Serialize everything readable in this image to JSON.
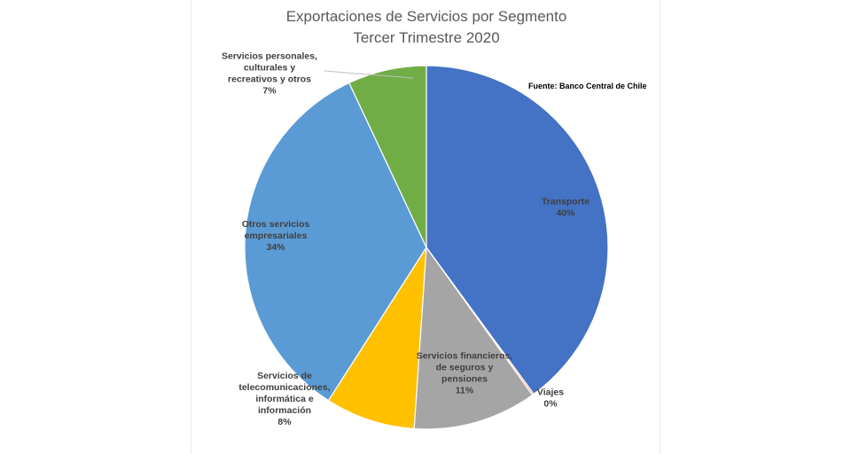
{
  "chart_data": {
    "type": "pie",
    "title": [
      "Exportaciones de Servicios por Segmento",
      "Tercer Trimestre 2020"
    ],
    "source": "Fuente: Banco Central de Chile",
    "slices": [
      {
        "name": "Transporte",
        "value": 40,
        "label_lines": [
          "Transporte"
        ],
        "pct_label": "40%",
        "color": "#4472c4",
        "label_pos": "inside"
      },
      {
        "name": "Viajes",
        "value": 0.15,
        "label_lines": [
          "Viajes"
        ],
        "pct_label": "0%",
        "color": "#ed7d31",
        "label_pos": "outside"
      },
      {
        "name": "Servicios financieros, de seguros y pensiones",
        "value": 11,
        "label_lines": [
          "Servicios financieros,",
          "de seguros y",
          "pensiones"
        ],
        "pct_label": "11%",
        "color": "#a5a5a5",
        "label_pos": "inside"
      },
      {
        "name": "Servicios de telecomunicaciones, informática e información",
        "value": 8,
        "label_lines": [
          "Servicios de",
          "telecomunicaciones,",
          "informática e",
          "información"
        ],
        "pct_label": "8%",
        "color": "#ffc000",
        "label_pos": "outside"
      },
      {
        "name": "Otros servicios empresariales",
        "value": 34,
        "label_lines": [
          "Otros servicios",
          "empresariales"
        ],
        "pct_label": "34%",
        "color": "#5b9bd5",
        "label_pos": "inside"
      },
      {
        "name": "Servicios personales, culturales y recreativos y otros",
        "value": 7,
        "label_lines": [
          "Servicios personales,",
          "culturales y",
          "recreativos y otros"
        ],
        "pct_label": "7%",
        "color": "#70ad47",
        "label_pos": "outside"
      }
    ],
    "start_angle": "12 o'clock",
    "direction": "clockwise",
    "legend": "none"
  }
}
